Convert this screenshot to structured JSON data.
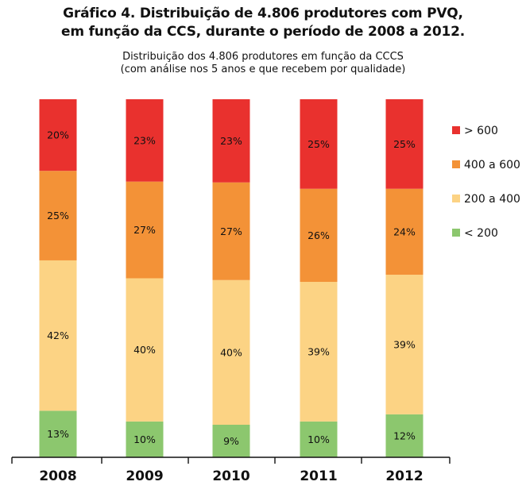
{
  "header": {
    "title_line1": "Gráfico 4. Distribuição de 4.806 produtores com PVQ,",
    "title_line2": "em função da CCS, durante o período de 2008 a 2012.",
    "subtitle_line1": "Distribuição dos 4.806 produtores em função da CCCS",
    "subtitle_line2": "(com análise nos 5 anos e que recebem por qualidade)"
  },
  "chart_data": {
    "type": "bar",
    "stacked": true,
    "percent": true,
    "title": "Gráfico 4. Distribuição de 4.806 produtores com PVQ, em função da CCS, durante o período de 2008 a 2012.",
    "subtitle": "Distribuição dos 4.806 produtores em função da CCCS (com análise nos 5 anos e que recebem por qualidade)",
    "categories": [
      "2008",
      "2009",
      "2010",
      "2011",
      "2012"
    ],
    "series": [
      {
        "name": "< 200",
        "color": "#8CC76E",
        "values": [
          13,
          10,
          9,
          10,
          12
        ],
        "labels": [
          "13%",
          "10%",
          "9%",
          "10%",
          "12%"
        ]
      },
      {
        "name": "200 a 400",
        "color": "#FCD384",
        "values": [
          42,
          40,
          40,
          39,
          39
        ],
        "labels": [
          "42%",
          "40%",
          "40%",
          "39%",
          "39%"
        ]
      },
      {
        "name": "400 a 600",
        "color": "#F39237",
        "values": [
          25,
          27,
          27,
          26,
          24
        ],
        "labels": [
          "25%",
          "27%",
          "27%",
          "26%",
          "24%"
        ]
      },
      {
        "name": "> 600",
        "color": "#E9312E",
        "values": [
          20,
          23,
          23,
          25,
          25
        ],
        "labels": [
          "20%",
          "23%",
          "23%",
          "25%",
          "25%"
        ]
      }
    ],
    "legend_order": [
      "> 600",
      "400 a 600",
      "200 a 400",
      "< 200"
    ],
    "legend_position": "right",
    "ylim": [
      0,
      100
    ],
    "grid": false,
    "xlabel": "",
    "ylabel": ""
  }
}
